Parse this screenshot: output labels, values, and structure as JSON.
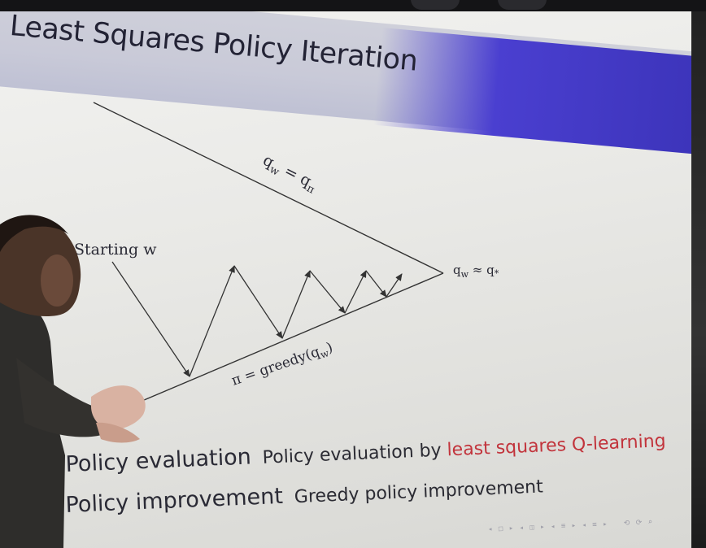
{
  "slide": {
    "title": "Least Squares Policy Iteration"
  },
  "diagram": {
    "upper_line_label_main": "q",
    "upper_line_label_sub_w": "w",
    "upper_line_label_eq": " = q",
    "upper_line_label_sub_pi": "π",
    "lower_line_label": "π = greedy(q",
    "lower_line_label_sub": "w",
    "lower_line_label_close": ")",
    "convergence_label_main": "q",
    "convergence_label_sub": "w",
    "convergence_label_rest": " ≈ q",
    "convergence_label_star": "*",
    "start_label": "Starting w"
  },
  "bullets": [
    {
      "term": "Policy evaluation",
      "desc_plain": "Policy evaluation by ",
      "desc_accent": "least squares Q-learning"
    },
    {
      "term": "Policy improvement",
      "desc_plain": "Greedy policy improvement",
      "desc_accent": ""
    }
  ],
  "colors": {
    "accent": "#c2343c",
    "header": "#4a3fd0",
    "ink": "#2a2a35"
  }
}
